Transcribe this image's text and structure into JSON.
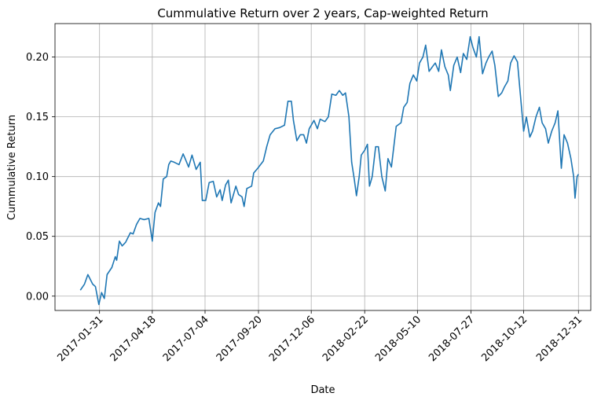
{
  "chart_data": {
    "type": "line",
    "title": "Cummulative Return over 2 years, Cap-weighted Return",
    "xlabel": "Date",
    "ylabel": "Cummulative Return",
    "color": "#1f77b4",
    "grid": true,
    "xlim": [
      "2016-11-27",
      "2019-01-18"
    ],
    "xticks": [
      "2017-01-31",
      "2017-04-18",
      "2017-07-04",
      "2017-09-20",
      "2017-12-06",
      "2018-02-22",
      "2018-05-10",
      "2018-07-27",
      "2018-10-12",
      "2018-12-31"
    ],
    "ylim": [
      -0.012,
      0.228
    ],
    "yticks": [
      {
        "value": 0,
        "label": "0.00"
      },
      0.05,
      {
        "value": 0.1,
        "label": "0.10"
      },
      0.15,
      {
        "value": 0.2,
        "label": "0.20"
      }
    ],
    "x": [
      "2017-01-03",
      "2017-01-09",
      "2017-01-14",
      "2017-01-21",
      "2017-01-25",
      "2017-01-30",
      "2017-02-03",
      "2017-02-07",
      "2017-02-11",
      "2017-02-18",
      "2017-02-23",
      "2017-02-25",
      "2017-03-01",
      "2017-03-05",
      "2017-03-10",
      "2017-03-17",
      "2017-03-21",
      "2017-03-26",
      "2017-03-31",
      "2017-04-06",
      "2017-04-13",
      "2017-04-18",
      "2017-04-22",
      "2017-04-27",
      "2017-04-30",
      "2017-05-04",
      "2017-05-09",
      "2017-05-12",
      "2017-05-15",
      "2017-05-20",
      "2017-05-27",
      "2017-06-02",
      "2017-06-05",
      "2017-06-10",
      "2017-06-15",
      "2017-06-21",
      "2017-06-27",
      "2017-06-30",
      "2017-07-05",
      "2017-07-10",
      "2017-07-16",
      "2017-07-21",
      "2017-07-26",
      "2017-07-29",
      "2017-08-03",
      "2017-08-07",
      "2017-08-11",
      "2017-08-18",
      "2017-08-22",
      "2017-08-27",
      "2017-08-30",
      "2017-09-03",
      "2017-09-10",
      "2017-09-13",
      "2017-09-19",
      "2017-09-27",
      "2017-10-02",
      "2017-10-07",
      "2017-10-14",
      "2017-10-21",
      "2017-10-28",
      "2017-11-02",
      "2017-11-07",
      "2017-11-10",
      "2017-11-15",
      "2017-11-20",
      "2017-11-25",
      "2017-11-29",
      "2017-12-03",
      "2017-12-10",
      "2017-12-15",
      "2017-12-19",
      "2017-12-26",
      "2017-12-31",
      "2018-01-05",
      "2018-01-11",
      "2018-01-16",
      "2018-01-21",
      "2018-01-25",
      "2018-01-30",
      "2018-02-03",
      "2018-02-07",
      "2018-02-10",
      "2018-02-14",
      "2018-02-17",
      "2018-02-22",
      "2018-02-26",
      "2018-03-01",
      "2018-03-05",
      "2018-03-10",
      "2018-03-14",
      "2018-03-19",
      "2018-03-24",
      "2018-03-28",
      "2018-04-02",
      "2018-04-09",
      "2018-04-16",
      "2018-04-20",
      "2018-04-25",
      "2018-04-29",
      "2018-05-04",
      "2018-05-09",
      "2018-05-13",
      "2018-05-18",
      "2018-05-22",
      "2018-05-27",
      "2018-06-01",
      "2018-06-05",
      "2018-06-10",
      "2018-06-14",
      "2018-06-19",
      "2018-06-24",
      "2018-06-27",
      "2018-07-02",
      "2018-07-07",
      "2018-07-12",
      "2018-07-16",
      "2018-07-21",
      "2018-07-26",
      "2018-07-30",
      "2018-08-04",
      "2018-08-08",
      "2018-08-13",
      "2018-08-18",
      "2018-08-22",
      "2018-08-27",
      "2018-08-31",
      "2018-09-05",
      "2018-09-10",
      "2018-09-14",
      "2018-09-19",
      "2018-09-23",
      "2018-09-28",
      "2018-10-03",
      "2018-10-07",
      "2018-10-12",
      "2018-10-16",
      "2018-10-21",
      "2018-10-25",
      "2018-10-30",
      "2018-11-04",
      "2018-11-08",
      "2018-11-13",
      "2018-11-17",
      "2018-11-22",
      "2018-11-27",
      "2018-12-01",
      "2018-12-06",
      "2018-12-10",
      "2018-12-15",
      "2018-12-20",
      "2018-12-24",
      "2018-12-26",
      "2018-12-29",
      "2018-12-31"
    ],
    "values": [
      0.005,
      0.01,
      0.018,
      0.01,
      0.008,
      -0.007,
      0.003,
      -0.002,
      0.018,
      0.024,
      0.033,
      0.03,
      0.046,
      0.042,
      0.045,
      0.053,
      0.052,
      0.06,
      0.065,
      0.064,
      0.065,
      0.046,
      0.07,
      0.078,
      0.075,
      0.098,
      0.1,
      0.11,
      0.113,
      0.112,
      0.11,
      0.119,
      0.115,
      0.108,
      0.118,
      0.106,
      0.112,
      0.08,
      0.08,
      0.095,
      0.096,
      0.083,
      0.089,
      0.08,
      0.093,
      0.097,
      0.078,
      0.092,
      0.085,
      0.083,
      0.075,
      0.09,
      0.092,
      0.103,
      0.107,
      0.113,
      0.125,
      0.135,
      0.14,
      0.141,
      0.143,
      0.163,
      0.163,
      0.147,
      0.13,
      0.135,
      0.135,
      0.128,
      0.14,
      0.147,
      0.14,
      0.148,
      0.146,
      0.15,
      0.169,
      0.168,
      0.172,
      0.168,
      0.17,
      0.15,
      0.112,
      0.097,
      0.084,
      0.1,
      0.118,
      0.122,
      0.127,
      0.092,
      0.1,
      0.125,
      0.125,
      0.1,
      0.088,
      0.115,
      0.108,
      0.142,
      0.145,
      0.158,
      0.162,
      0.178,
      0.185,
      0.18,
      0.195,
      0.2,
      0.21,
      0.188,
      0.192,
      0.195,
      0.188,
      0.206,
      0.192,
      0.185,
      0.172,
      0.193,
      0.2,
      0.187,
      0.203,
      0.198,
      0.217,
      0.208,
      0.2,
      0.217,
      0.186,
      0.195,
      0.2,
      0.205,
      0.193,
      0.167,
      0.17,
      0.175,
      0.18,
      0.195,
      0.201,
      0.196,
      0.17,
      0.138,
      0.15,
      0.133,
      0.138,
      0.15,
      0.158,
      0.145,
      0.14,
      0.128,
      0.138,
      0.145,
      0.155,
      0.107,
      0.135,
      0.128,
      0.115,
      0.1,
      0.082,
      0.1,
      0.102
    ]
  }
}
